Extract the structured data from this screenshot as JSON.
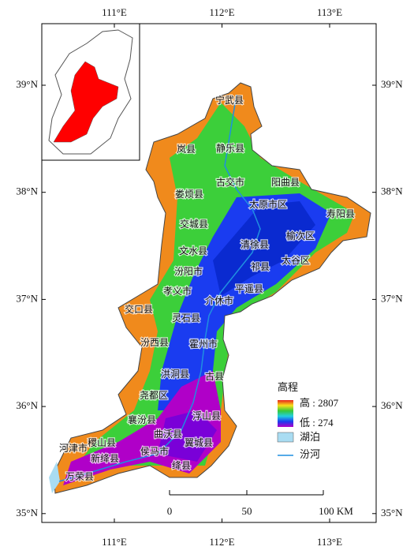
{
  "map": {
    "lon_ticks": [
      {
        "value": 111,
        "label": "111°E"
      },
      {
        "value": 112,
        "label": "112°E"
      },
      {
        "value": 113,
        "label": "113°E"
      }
    ],
    "lat_ticks": [
      {
        "value": 39,
        "label": "39°N"
      },
      {
        "value": 38,
        "label": "38°N"
      },
      {
        "value": 37,
        "label": "37°N"
      },
      {
        "value": 36,
        "label": "36°N"
      },
      {
        "value": 35,
        "label": "35°N"
      }
    ],
    "counties": [
      "宁武县",
      "岚县",
      "静乐县",
      "古交市",
      "阳曲县",
      "娄烦县",
      "太原市区",
      "寿阳县",
      "交城县",
      "清徐县",
      "榆次区",
      "文水县",
      "祁县",
      "太谷区",
      "汾阳市",
      "平遥县",
      "孝义市",
      "介休市",
      "交口县",
      "灵石县",
      "汾西县",
      "霍州市",
      "洪洞县",
      "古县",
      "尧都区",
      "襄汾县",
      "浮山县",
      "曲沃县",
      "稷山县",
      "侯马市",
      "翼城县",
      "河津市",
      "新绛县",
      "绛县",
      "万荣县"
    ],
    "legend": {
      "title": "高程",
      "high": "高 : 2807",
      "low": "低 : 274",
      "lake": "湖泊",
      "river": "汾河"
    },
    "scale_bar": [
      "0",
      "50",
      "100 KM"
    ]
  }
}
